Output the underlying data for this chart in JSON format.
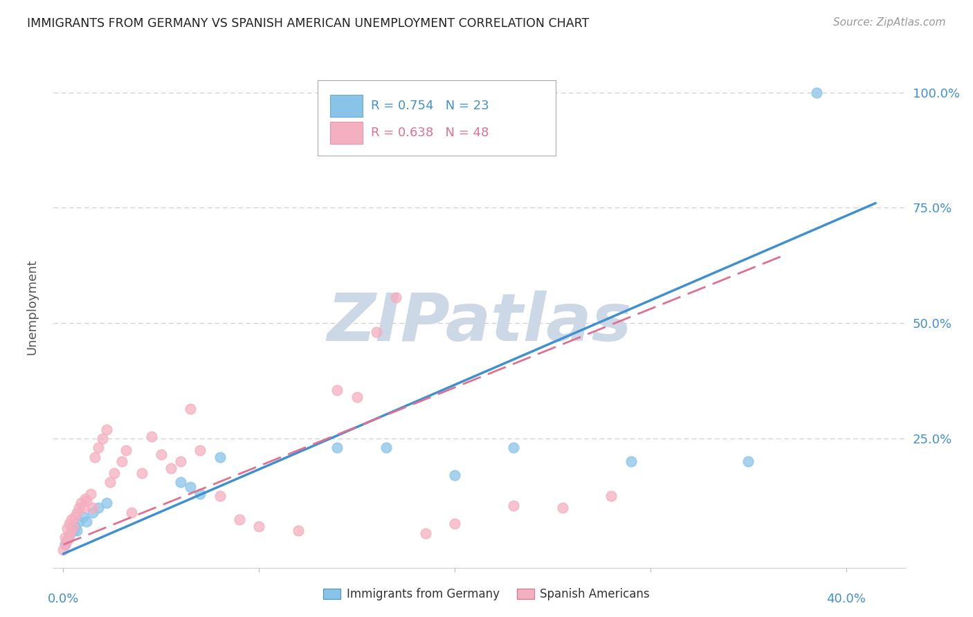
{
  "title": "IMMIGRANTS FROM GERMANY VS SPANISH AMERICAN UNEMPLOYMENT CORRELATION CHART",
  "source": "Source: ZipAtlas.com",
  "ylabel": "Unemployment",
  "bg_color": "#ffffff",
  "grid_color": "#cccccc",
  "blue_color": "#89c4e8",
  "pink_color": "#f4afc0",
  "blue_line_color": "#4090d0",
  "pink_line_color": "#e07090",
  "legend_text_1": "R = 0.754   N = 23",
  "legend_text_2": "R = 0.638   N = 48",
  "ytick_labels": [
    "100.0%",
    "75.0%",
    "50.0%",
    "25.0%"
  ],
  "ytick_vals": [
    1.0,
    0.75,
    0.5,
    0.25
  ],
  "xlim": [
    -0.005,
    0.43
  ],
  "ylim": [
    -0.03,
    1.1
  ],
  "blue_scatter_x": [
    0.001,
    0.002,
    0.003,
    0.005,
    0.006,
    0.007,
    0.008,
    0.01,
    0.012,
    0.015,
    0.018,
    0.022,
    0.06,
    0.065,
    0.07,
    0.08,
    0.14,
    0.165,
    0.2,
    0.23,
    0.29,
    0.35,
    0.385
  ],
  "blue_scatter_y": [
    0.02,
    0.03,
    0.04,
    0.05,
    0.06,
    0.05,
    0.07,
    0.08,
    0.07,
    0.09,
    0.1,
    0.11,
    0.155,
    0.145,
    0.13,
    0.21,
    0.23,
    0.23,
    0.17,
    0.23,
    0.2,
    0.2,
    1.0
  ],
  "pink_scatter_x": [
    0.0,
    0.001,
    0.001,
    0.002,
    0.002,
    0.003,
    0.003,
    0.004,
    0.004,
    0.005,
    0.006,
    0.007,
    0.008,
    0.009,
    0.01,
    0.011,
    0.012,
    0.014,
    0.015,
    0.016,
    0.018,
    0.02,
    0.022,
    0.024,
    0.026,
    0.03,
    0.032,
    0.035,
    0.04,
    0.045,
    0.05,
    0.055,
    0.06,
    0.065,
    0.07,
    0.08,
    0.09,
    0.1,
    0.12,
    0.14,
    0.15,
    0.16,
    0.17,
    0.185,
    0.2,
    0.23,
    0.255,
    0.28
  ],
  "pink_scatter_y": [
    0.008,
    0.02,
    0.035,
    0.03,
    0.055,
    0.04,
    0.065,
    0.05,
    0.075,
    0.06,
    0.08,
    0.09,
    0.1,
    0.11,
    0.1,
    0.12,
    0.115,
    0.13,
    0.1,
    0.21,
    0.23,
    0.25,
    0.27,
    0.155,
    0.175,
    0.2,
    0.225,
    0.09,
    0.175,
    0.255,
    0.215,
    0.185,
    0.2,
    0.315,
    0.225,
    0.125,
    0.075,
    0.06,
    0.05,
    0.355,
    0.34,
    0.48,
    0.555,
    0.045,
    0.065,
    0.105,
    0.1,
    0.125
  ],
  "blue_line_x": [
    0.0,
    0.415
  ],
  "blue_line_y": [
    0.0,
    0.76
  ],
  "pink_line_x": [
    0.0,
    0.37
  ],
  "pink_line_y": [
    0.02,
    0.65
  ],
  "watermark": "ZIPatlas",
  "watermark_color": "#ccd8e5"
}
